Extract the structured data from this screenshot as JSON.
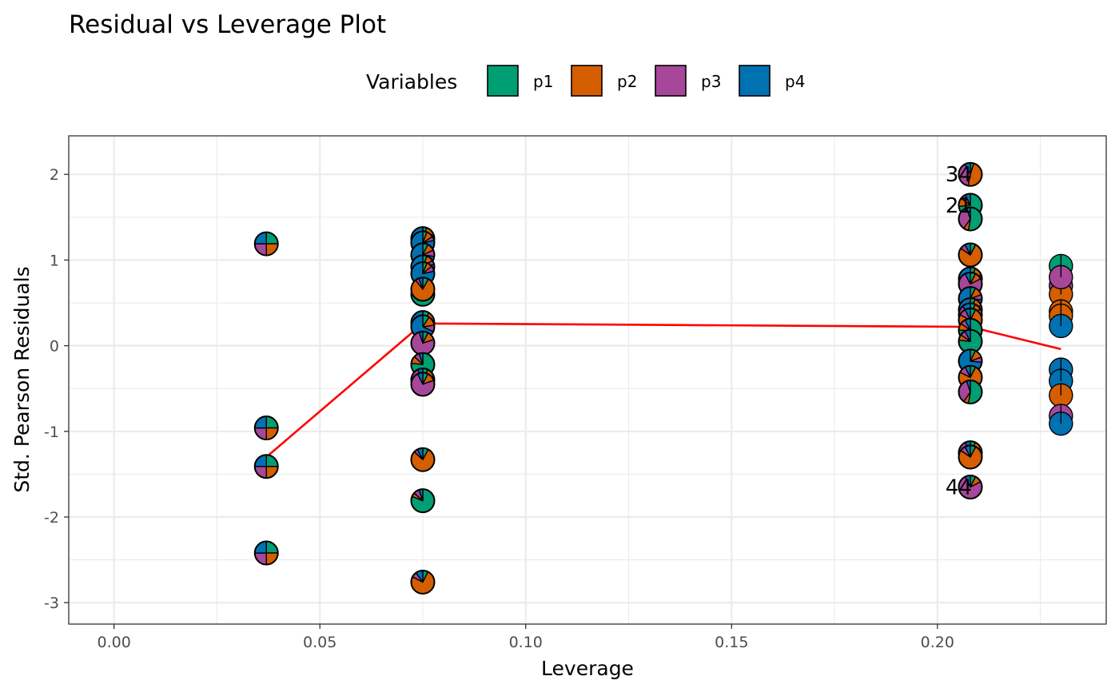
{
  "chart_data": {
    "type": "scatter",
    "title": "Residual vs Leverage Plot",
    "xlabel": "Leverage",
    "ylabel": "Std. Pearson Residuals",
    "xlim": [
      -0.011,
      0.241
    ],
    "ylim": [
      -3.25,
      2.45
    ],
    "x_ticks": [
      0.0,
      0.05,
      0.1,
      0.15,
      0.2
    ],
    "x_tick_labels": [
      "0.00",
      "0.05",
      "0.10",
      "0.15",
      "0.20"
    ],
    "y_ticks": [
      -3,
      -2,
      -1,
      0,
      1,
      2
    ],
    "y_tick_labels": [
      "-3",
      "-2",
      "-1",
      "0",
      "1",
      "2"
    ],
    "grid": true,
    "legend": {
      "title": "Variables",
      "position": "top",
      "entries": [
        {
          "name": "p1",
          "color": "#009E73"
        },
        {
          "name": "p2",
          "color": "#D55E00"
        },
        {
          "name": "p3",
          "color": "#A6479A"
        },
        {
          "name": "p4",
          "color": "#0072B2"
        }
      ]
    },
    "trend_line": [
      {
        "x": 0.037,
        "y": -1.3
      },
      {
        "x": 0.075,
        "y": 0.26
      },
      {
        "x": 0.208,
        "y": 0.22
      },
      {
        "x": 0.23,
        "y": -0.04
      }
    ],
    "points": [
      {
        "x": 0.037,
        "y": 1.19,
        "w": [
          1,
          1,
          1,
          1
        ]
      },
      {
        "x": 0.037,
        "y": -0.96,
        "w": [
          1,
          1,
          1,
          1
        ]
      },
      {
        "x": 0.037,
        "y": -1.41,
        "w": [
          1,
          1,
          1,
          1
        ]
      },
      {
        "x": 0.037,
        "y": -2.42,
        "w": [
          1,
          1,
          1,
          1
        ]
      },
      {
        "x": 0.075,
        "y": 1.25,
        "w": [
          0.3,
          0.8,
          0.4,
          4
        ]
      },
      {
        "x": 0.075,
        "y": 1.2,
        "w": [
          0.3,
          0.5,
          0.3,
          4
        ]
      },
      {
        "x": 0.075,
        "y": 1.06,
        "w": [
          0.4,
          0.6,
          0.5,
          4
        ]
      },
      {
        "x": 0.075,
        "y": 0.92,
        "w": [
          0.3,
          0.5,
          0.3,
          4
        ]
      },
      {
        "x": 0.075,
        "y": 0.84,
        "w": [
          0.3,
          0.4,
          0.4,
          4
        ]
      },
      {
        "x": 0.075,
        "y": 0.6,
        "w": [
          3,
          0.3,
          0.2,
          0.2
        ]
      },
      {
        "x": 0.075,
        "y": 0.66,
        "w": [
          0.3,
          3,
          0.2,
          0.2
        ]
      },
      {
        "x": 0.075,
        "y": 0.27,
        "w": [
          0.4,
          0.6,
          0.4,
          3
        ]
      },
      {
        "x": 0.075,
        "y": 0.22,
        "w": [
          0.4,
          0.6,
          0.4,
          3
        ]
      },
      {
        "x": 0.075,
        "y": 0.03,
        "w": [
          0.3,
          0.5,
          3,
          0.2
        ]
      },
      {
        "x": 0.075,
        "y": -0.22,
        "w": [
          3,
          0.4,
          0.3,
          0.2
        ]
      },
      {
        "x": 0.075,
        "y": -0.4,
        "w": [
          0.3,
          0.5,
          3,
          0.3
        ]
      },
      {
        "x": 0.075,
        "y": -0.45,
        "w": [
          0.3,
          0.5,
          3,
          0.3
        ]
      },
      {
        "x": 0.075,
        "y": -1.33,
        "w": [
          0.3,
          3,
          0.2,
          0.3
        ]
      },
      {
        "x": 0.075,
        "y": -1.81,
        "w": [
          3,
          0.2,
          0.3,
          0.2
        ]
      },
      {
        "x": 0.075,
        "y": -2.76,
        "w": [
          0.3,
          3,
          0.3,
          0.4
        ]
      },
      {
        "x": 0.208,
        "y": 2.0,
        "label": "34",
        "w": [
          0.3,
          3,
          2.4,
          0.5
        ]
      },
      {
        "x": 0.208,
        "y": 1.64,
        "label": "21",
        "w": [
          3,
          0.5,
          0.3,
          0.3
        ]
      },
      {
        "x": 0.208,
        "y": 1.48,
        "w": [
          3,
          0.4,
          2,
          0.3
        ]
      },
      {
        "x": 0.208,
        "y": 1.06,
        "w": [
          0.3,
          3,
          0.3,
          0.3
        ]
      },
      {
        "x": 0.208,
        "y": 0.78,
        "w": [
          0.3,
          0.5,
          0.3,
          3
        ]
      },
      {
        "x": 0.208,
        "y": 0.72,
        "w": [
          0.3,
          0.4,
          3,
          0.3
        ]
      },
      {
        "x": 0.208,
        "y": 0.55,
        "w": [
          0.3,
          0.5,
          0.3,
          3
        ]
      },
      {
        "x": 0.208,
        "y": 0.42,
        "w": [
          0.3,
          0.5,
          0.4,
          3
        ]
      },
      {
        "x": 0.208,
        "y": 0.36,
        "w": [
          0.3,
          0.4,
          3,
          0.5
        ]
      },
      {
        "x": 0.208,
        "y": 0.3,
        "w": [
          0.3,
          3,
          0.4,
          0.3
        ]
      },
      {
        "x": 0.208,
        "y": 0.18,
        "w": [
          3,
          0.4,
          0.3,
          0.3
        ]
      },
      {
        "x": 0.208,
        "y": 0.05,
        "w": [
          3,
          0.3,
          0.3,
          0.3
        ]
      },
      {
        "x": 0.208,
        "y": -0.18,
        "w": [
          0.3,
          0.5,
          0.3,
          3
        ]
      },
      {
        "x": 0.208,
        "y": -0.37,
        "w": [
          0.3,
          3,
          0.4,
          0.3
        ]
      },
      {
        "x": 0.208,
        "y": -0.54,
        "w": [
          3,
          0.4,
          2,
          0.3
        ]
      },
      {
        "x": 0.208,
        "y": -1.25,
        "w": [
          0.3,
          0.4,
          3,
          0.3
        ]
      },
      {
        "x": 0.208,
        "y": -1.3,
        "w": [
          0.3,
          3,
          0.3,
          0.3
        ]
      },
      {
        "x": 0.208,
        "y": -1.65,
        "label": "44",
        "w": [
          0.3,
          0.4,
          3,
          0.3
        ]
      },
      {
        "x": 0.23,
        "y": 0.93,
        "w": [
          3,
          0,
          0,
          0
        ]
      },
      {
        "x": 0.23,
        "y": 0.7,
        "w": [
          0,
          0,
          3,
          0
        ]
      },
      {
        "x": 0.23,
        "y": 0.6,
        "w": [
          0,
          3,
          0,
          0
        ]
      },
      {
        "x": 0.23,
        "y": 0.8,
        "w": [
          0,
          0,
          3,
          0
        ]
      },
      {
        "x": 0.23,
        "y": 0.4,
        "w": [
          0,
          3,
          0,
          0
        ]
      },
      {
        "x": 0.23,
        "y": 0.35,
        "w": [
          0,
          3,
          0,
          0
        ]
      },
      {
        "x": 0.23,
        "y": 0.23,
        "w": [
          0,
          0,
          0,
          3
        ]
      },
      {
        "x": 0.23,
        "y": -0.28,
        "w": [
          0,
          0,
          0,
          3
        ]
      },
      {
        "x": 0.23,
        "y": -0.41,
        "w": [
          0,
          0,
          0,
          3
        ]
      },
      {
        "x": 0.23,
        "y": -0.58,
        "w": [
          0,
          3,
          0,
          0
        ]
      },
      {
        "x": 0.23,
        "y": -0.82,
        "w": [
          0,
          0,
          3,
          0
        ]
      },
      {
        "x": 0.23,
        "y": -0.91,
        "w": [
          0,
          0,
          0,
          3
        ]
      }
    ]
  }
}
